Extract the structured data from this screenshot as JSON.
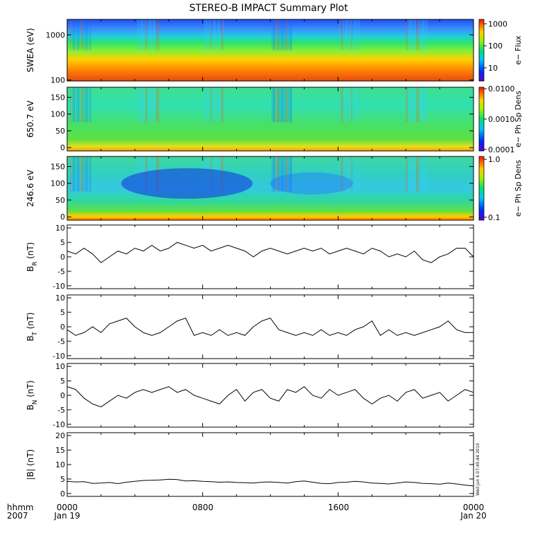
{
  "title": "STEREO-B IMPACT Summary Plot",
  "footer": {
    "timelabel": "hhmm",
    "year": "2007",
    "ticks": [
      "0000",
      "0800",
      "1600",
      "0000"
    ],
    "dates": [
      "Jan 19",
      "",
      "",
      "Jan 20"
    ],
    "stamp": "Wed Jun 6 07:45:44 2010"
  },
  "colors": {
    "axis": "#000000",
    "line": "#000000",
    "background": "#ffffff"
  },
  "chart_data": [
    {
      "type": "heatmap",
      "ylabel": "SWEA (eV)",
      "yscale": "log",
      "ylim": [
        95,
        2200
      ],
      "yticks": [
        100,
        1000
      ],
      "yticklabels": [
        "100",
        "1000"
      ],
      "colorbar": {
        "label": "e− Flux",
        "scale": "log",
        "ticks": [
          10,
          100,
          1000
        ],
        "ticklabels": [
          "10",
          "100",
          "1000"
        ]
      }
    },
    {
      "type": "heatmap",
      "ylabel": "650.7 eV",
      "ylim": [
        -10,
        180
      ],
      "yticks": [
        0,
        50,
        100,
        150
      ],
      "yticklabels": [
        "0",
        "50",
        "100",
        "150"
      ],
      "colorbar": {
        "label": "e− Ph Sp Dens",
        "scale": "log",
        "ticks": [
          0.0001,
          0.001,
          0.01
        ],
        "ticklabels": [
          "0.0001",
          "0.0010",
          "0.0100"
        ]
      }
    },
    {
      "type": "heatmap",
      "ylabel": "246.6 eV",
      "ylim": [
        -10,
        180
      ],
      "yticks": [
        0,
        50,
        100,
        150
      ],
      "yticklabels": [
        "0",
        "50",
        "100",
        "150"
      ],
      "colorbar": {
        "label": "e− Ph Sp Dens",
        "scale": "log",
        "ticks": [
          0.1,
          1.0
        ],
        "ticklabels": [
          "0.1",
          "1.0"
        ]
      }
    },
    {
      "type": "line",
      "ylabel": "B",
      "ysub": "R",
      "yunit": " (nT)",
      "ylim": [
        -11,
        11
      ],
      "yticks": [
        -10,
        -5,
        0,
        5,
        10
      ],
      "yticklabels": [
        "-10",
        "-5",
        "0",
        "5",
        "10"
      ],
      "x": [
        0,
        0.5,
        1,
        1.5,
        2,
        2.5,
        3,
        3.5,
        4,
        4.5,
        5,
        5.5,
        6,
        6.5,
        7,
        7.5,
        8,
        8.5,
        9,
        9.5,
        10,
        10.5,
        11,
        11.5,
        12,
        12.5,
        13,
        13.5,
        14,
        14.5,
        15,
        15.5,
        16,
        16.5,
        17,
        17.5,
        18,
        18.5,
        19,
        19.5,
        20,
        20.5,
        21,
        21.5,
        22,
        22.5,
        23,
        23.5,
        24
      ],
      "y": [
        2,
        1,
        3,
        1,
        -2,
        0,
        2,
        1,
        3,
        2,
        4,
        2,
        3,
        5,
        4,
        3,
        4,
        2,
        3,
        4,
        3,
        2,
        0,
        2,
        3,
        2,
        1,
        2,
        3,
        2,
        3,
        1,
        2,
        3,
        2,
        1,
        3,
        2,
        0,
        1,
        0,
        2,
        -1,
        -2,
        0,
        1,
        3,
        3,
        0
      ]
    },
    {
      "type": "line",
      "ylabel": "B",
      "ysub": "T",
      "yunit": " (nT)",
      "ylim": [
        -11,
        11
      ],
      "yticks": [
        -10,
        -5,
        0,
        5,
        10
      ],
      "yticklabels": [
        "-10",
        "-5",
        "0",
        "5",
        "10"
      ],
      "x": [
        0,
        0.5,
        1,
        1.5,
        2,
        2.5,
        3,
        3.5,
        4,
        4.5,
        5,
        5.5,
        6,
        6.5,
        7,
        7.5,
        8,
        8.5,
        9,
        9.5,
        10,
        10.5,
        11,
        11.5,
        12,
        12.5,
        13,
        13.5,
        14,
        14.5,
        15,
        15.5,
        16,
        16.5,
        17,
        17.5,
        18,
        18.5,
        19,
        19.5,
        20,
        20.5,
        21,
        21.5,
        22,
        22.5,
        23,
        23.5,
        24
      ],
      "y": [
        -1,
        -3,
        -2,
        0,
        -2,
        1,
        2,
        3,
        0,
        -2,
        -3,
        -2,
        0,
        2,
        3,
        -3,
        -2,
        -3,
        -1,
        -3,
        -2,
        -3,
        0,
        2,
        3,
        -1,
        -2,
        -3,
        -2,
        -3,
        -1,
        -3,
        -2,
        -3,
        -1,
        0,
        2,
        -3,
        -1,
        -3,
        -2,
        -3,
        -2,
        -1,
        0,
        2,
        -1,
        -2,
        -2
      ]
    },
    {
      "type": "line",
      "ylabel": "B",
      "ysub": "N",
      "yunit": " (nT)",
      "ylim": [
        -11,
        11
      ],
      "yticks": [
        -10,
        -5,
        0,
        5,
        10
      ],
      "yticklabels": [
        "-10",
        "-5",
        "0",
        "5",
        "10"
      ],
      "x": [
        0,
        0.5,
        1,
        1.5,
        2,
        2.5,
        3,
        3.5,
        4,
        4.5,
        5,
        5.5,
        6,
        6.5,
        7,
        7.5,
        8,
        8.5,
        9,
        9.5,
        10,
        10.5,
        11,
        11.5,
        12,
        12.5,
        13,
        13.5,
        14,
        14.5,
        15,
        15.5,
        16,
        16.5,
        17,
        17.5,
        18,
        18.5,
        19,
        19.5,
        20,
        20.5,
        21,
        21.5,
        22,
        22.5,
        23,
        23.5,
        24
      ],
      "y": [
        3,
        2,
        -1,
        -3,
        -4,
        -2,
        0,
        -1,
        1,
        2,
        1,
        2,
        3,
        1,
        2,
        0,
        -1,
        -2,
        -3,
        0,
        2,
        -2,
        1,
        2,
        -1,
        -2,
        2,
        1,
        3,
        0,
        -1,
        2,
        0,
        1,
        2,
        -1,
        -3,
        -1,
        0,
        -2,
        1,
        2,
        -1,
        0,
        1,
        -2,
        0,
        2,
        1
      ]
    },
    {
      "type": "line",
      "ylabel": "|B| (nT)",
      "ylim": [
        -1,
        21
      ],
      "yticks": [
        0,
        5,
        10,
        15,
        20
      ],
      "yticklabels": [
        "0",
        "5",
        "10",
        "15",
        "20"
      ],
      "x": [
        0,
        0.5,
        1,
        1.5,
        2,
        2.5,
        3,
        3.5,
        4,
        4.5,
        5,
        5.5,
        6,
        6.5,
        7,
        7.5,
        8,
        8.5,
        9,
        9.5,
        10,
        10.5,
        11,
        11.5,
        12,
        12.5,
        13,
        13.5,
        14,
        14.5,
        15,
        15.5,
        16,
        16.5,
        17,
        17.5,
        18,
        18.5,
        19,
        19.5,
        20,
        20.5,
        21,
        21.5,
        22,
        22.5,
        23,
        23.5,
        24
      ],
      "y": [
        4.2,
        4.0,
        4.1,
        3.5,
        3.6,
        3.8,
        3.4,
        3.9,
        4.2,
        4.5,
        4.6,
        4.7,
        4.9,
        4.8,
        4.3,
        4.4,
        4.2,
        4.1,
        3.9,
        4.0,
        3.8,
        3.7,
        3.6,
        3.9,
        4.0,
        3.8,
        3.6,
        4.1,
        4.3,
        3.9,
        3.5,
        3.4,
        3.8,
        3.9,
        4.2,
        4.0,
        3.6,
        3.5,
        3.3,
        3.6,
        4.0,
        3.8,
        3.5,
        3.4,
        3.2,
        3.6,
        3.3,
        2.9,
        2.6
      ]
    }
  ]
}
